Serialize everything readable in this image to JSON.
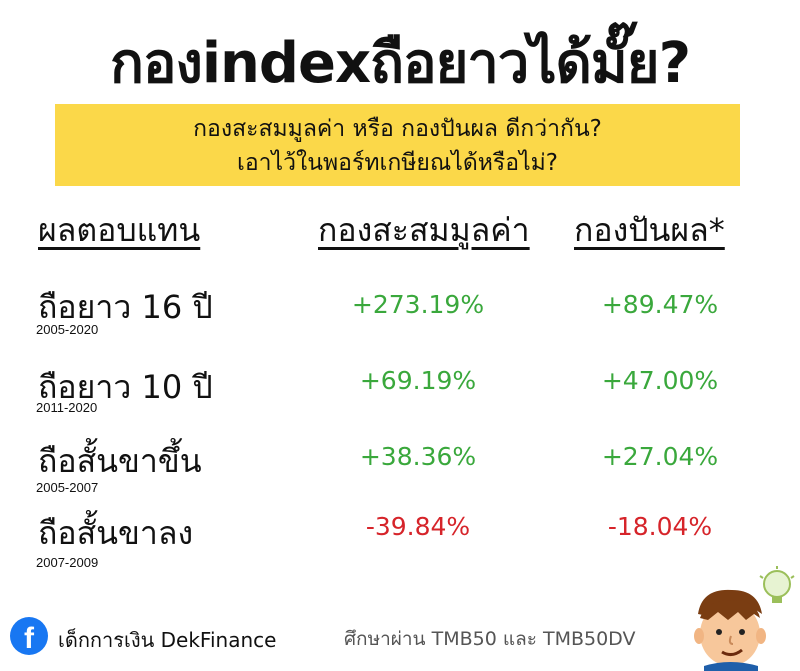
{
  "title": "กองindexถือยาวได้มั๊ย?",
  "banner": {
    "line1": "กองสะสมมูลค่า หรือ กองปันผล ดีกว่ากัน?",
    "line2": "เอาไว้ในพอร์ทเกษียณได้หรือไม่?"
  },
  "table": {
    "headers": {
      "label": "ผลตอบแทน",
      "accumulation": "กองสะสมมูลค่า",
      "dividend": "กองปันผล*"
    },
    "rows": [
      {
        "label": "ถือยาว 16 ปี",
        "years": "2005-2020",
        "accumulation": "+273.19%",
        "dividend": "+89.47%"
      },
      {
        "label": "ถือยาว 10 ปี",
        "years": "2011-2020",
        "accumulation": "+69.19%",
        "dividend": "+47.00%"
      },
      {
        "label": "ถือสั้นขาขึ้น",
        "years": "2005-2007",
        "accumulation": "+38.36%",
        "dividend": "+27.04%"
      },
      {
        "label": "ถือสั้นขาลง",
        "years": "2007-2009",
        "accumulation": "-39.84%",
        "dividend": "-18.04%"
      }
    ]
  },
  "footer": {
    "brand": "เด็กการเงิน DekFinance",
    "note": "ศึกษาผ่าน TMB50 และ TMB50DV",
    "fb_icon": "f"
  },
  "colors": {
    "banner": "#fbd849",
    "positive": "#3aa83c",
    "negative": "#d6242a",
    "facebook": "#1877f2"
  }
}
